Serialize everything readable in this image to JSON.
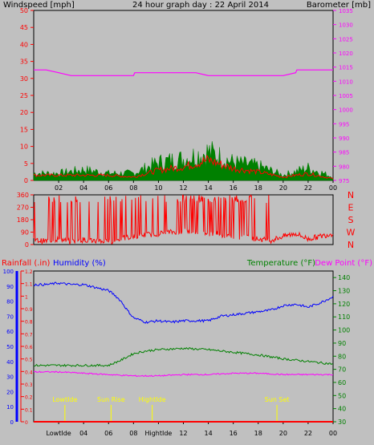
{
  "header": {
    "title": "24 hour graph day : 22 April 2014",
    "wind_label": "Windspeed [mph]",
    "baro_label": "Barometer [mb]"
  },
  "colors": {
    "wind": "#ff0000",
    "gust_fill": "#008000",
    "baro": "#ff00ff",
    "humidity": "#0000ff",
    "temperature": "#008000",
    "dewpoint": "#ff00ff",
    "rain": "#ff0000",
    "annotation": "#ffff00",
    "background": "#c0c0c0"
  },
  "chart_data": [
    {
      "type": "line",
      "name": "wind-baro",
      "title": "24 hour graph day : 22 April 2014",
      "ylabel": "Windspeed [mph]",
      "y2label": "Barometer [mb]",
      "ylim": [
        0,
        50
      ],
      "y2lim": [
        975,
        1035
      ],
      "yticks": [
        0,
        5,
        10,
        15,
        20,
        25,
        30,
        35,
        40,
        45,
        50
      ],
      "y2ticks": [
        975,
        980,
        985,
        990,
        995,
        1000,
        1005,
        1010,
        1015,
        1020,
        1025,
        1030,
        1035
      ],
      "x_tick_labels": [
        "02",
        "04",
        "06",
        "08",
        "10",
        "12",
        "14",
        "16",
        "18",
        "20",
        "22",
        "00"
      ],
      "grid": false,
      "series": [
        {
          "name": "Windspeed",
          "axis": "left",
          "x": [
            0,
            2,
            4,
            6,
            8,
            10,
            12,
            14,
            16,
            18,
            20,
            22,
            24
          ],
          "values": [
            1.5,
            1.5,
            1.5,
            1.5,
            1,
            3,
            4,
            6,
            3.5,
            2.5,
            1,
            2,
            0.5
          ]
        },
        {
          "name": "Gust",
          "axis": "left",
          "x": [
            0,
            2,
            4,
            6,
            8,
            10,
            12,
            14,
            16,
            18,
            20,
            22,
            24
          ],
          "values": [
            2,
            2,
            3,
            2,
            2,
            5,
            6,
            8,
            5,
            4,
            1.5,
            3.5,
            1
          ]
        },
        {
          "name": "Barometer",
          "axis": "right",
          "x": [
            0,
            1,
            2,
            3,
            8,
            8.1,
            13,
            14,
            20,
            21,
            21.1,
            24
          ],
          "values": [
            1014,
            1014,
            1013,
            1012,
            1012,
            1013,
            1013,
            1012,
            1012,
            1013,
            1014,
            1014
          ]
        }
      ]
    },
    {
      "type": "line",
      "name": "wind-direction",
      "ylim": [
        0,
        360
      ],
      "yticks": [
        0,
        90,
        180,
        270,
        360
      ],
      "y2_labels": [
        "N",
        "W",
        "S",
        "E",
        "N"
      ],
      "series": [
        {
          "name": "Wind direction",
          "x": [
            0,
            1,
            2,
            3,
            4,
            5,
            6,
            7,
            8,
            9,
            10,
            11,
            12,
            13,
            14,
            15,
            16,
            17,
            18,
            19,
            20,
            21,
            22,
            23,
            24
          ],
          "values": [
            30,
            25,
            40,
            20,
            35,
            30,
            20,
            40,
            60,
            70,
            80,
            90,
            100,
            90,
            80,
            70,
            60,
            50,
            40,
            30,
            60,
            80,
            40,
            60,
            80
          ]
        }
      ]
    },
    {
      "type": "line",
      "name": "rain-humidity-temperature",
      "y_rain_label": "Rainfall (.in)",
      "y_hum_label": "Humidity (%)",
      "y_temp_label": "Temperature (°F)",
      "y_dew_label": "Dew Point (°F)",
      "rain_ticks": [
        0,
        0.1,
        0.2,
        0.3,
        0.4,
        0.5,
        0.6,
        0.7,
        0.8,
        0.9,
        1,
        1.1,
        1.2
      ],
      "hum_ticks": [
        0,
        10,
        20,
        30,
        40,
        50,
        60,
        70,
        80,
        90,
        100
      ],
      "temp_ticks": [
        30,
        40,
        50,
        60,
        70,
        80,
        90,
        100,
        110,
        120,
        130,
        140
      ],
      "x_tick_labels": [
        "LowtIde",
        "04",
        "06",
        "08",
        "HightIde",
        "12",
        "14",
        "16",
        "18",
        "20",
        "22",
        "00"
      ],
      "rainlim": [
        0,
        1.2
      ],
      "humlim": [
        0,
        100
      ],
      "templim": [
        30,
        145
      ],
      "series": [
        {
          "name": "Humidity",
          "x": [
            0,
            1,
            2,
            3,
            4,
            5,
            6,
            6.5,
            7,
            7.5,
            8,
            9,
            10,
            11,
            12,
            13,
            14,
            15,
            16,
            17,
            18,
            19,
            20,
            21,
            22,
            23,
            24
          ],
          "values": [
            91,
            91,
            92,
            91,
            91,
            89,
            87,
            84,
            80,
            74,
            69,
            66,
            67,
            66,
            67,
            67,
            67,
            70,
            71,
            72,
            73,
            74,
            77,
            78,
            76,
            79,
            83
          ]
        },
        {
          "name": "Temperature",
          "x": [
            0,
            2,
            4,
            6,
            7,
            8,
            9,
            10,
            12,
            14,
            16,
            18,
            20,
            22,
            24
          ],
          "values": [
            73,
            73,
            73,
            73,
            77,
            82,
            84,
            85,
            86,
            85,
            83,
            81,
            78,
            76,
            74
          ]
        },
        {
          "name": "Dew Point",
          "x": [
            0,
            2,
            4,
            6,
            8,
            10,
            12,
            14,
            16,
            18,
            20,
            22,
            24
          ],
          "values": [
            68,
            68,
            67,
            66,
            65,
            65,
            66,
            66,
            67,
            67,
            66,
            66,
            66
          ]
        },
        {
          "name": "Rainfall",
          "x": [
            0,
            24
          ],
          "values": [
            0,
            0
          ]
        }
      ],
      "annotations": [
        {
          "label": "LowtIde",
          "x": 2.5
        },
        {
          "label": "Sun Rise",
          "x": 6.2
        },
        {
          "label": "HightIde",
          "x": 9.5
        },
        {
          "label": "Sun Set",
          "x": 19.5
        }
      ]
    }
  ]
}
